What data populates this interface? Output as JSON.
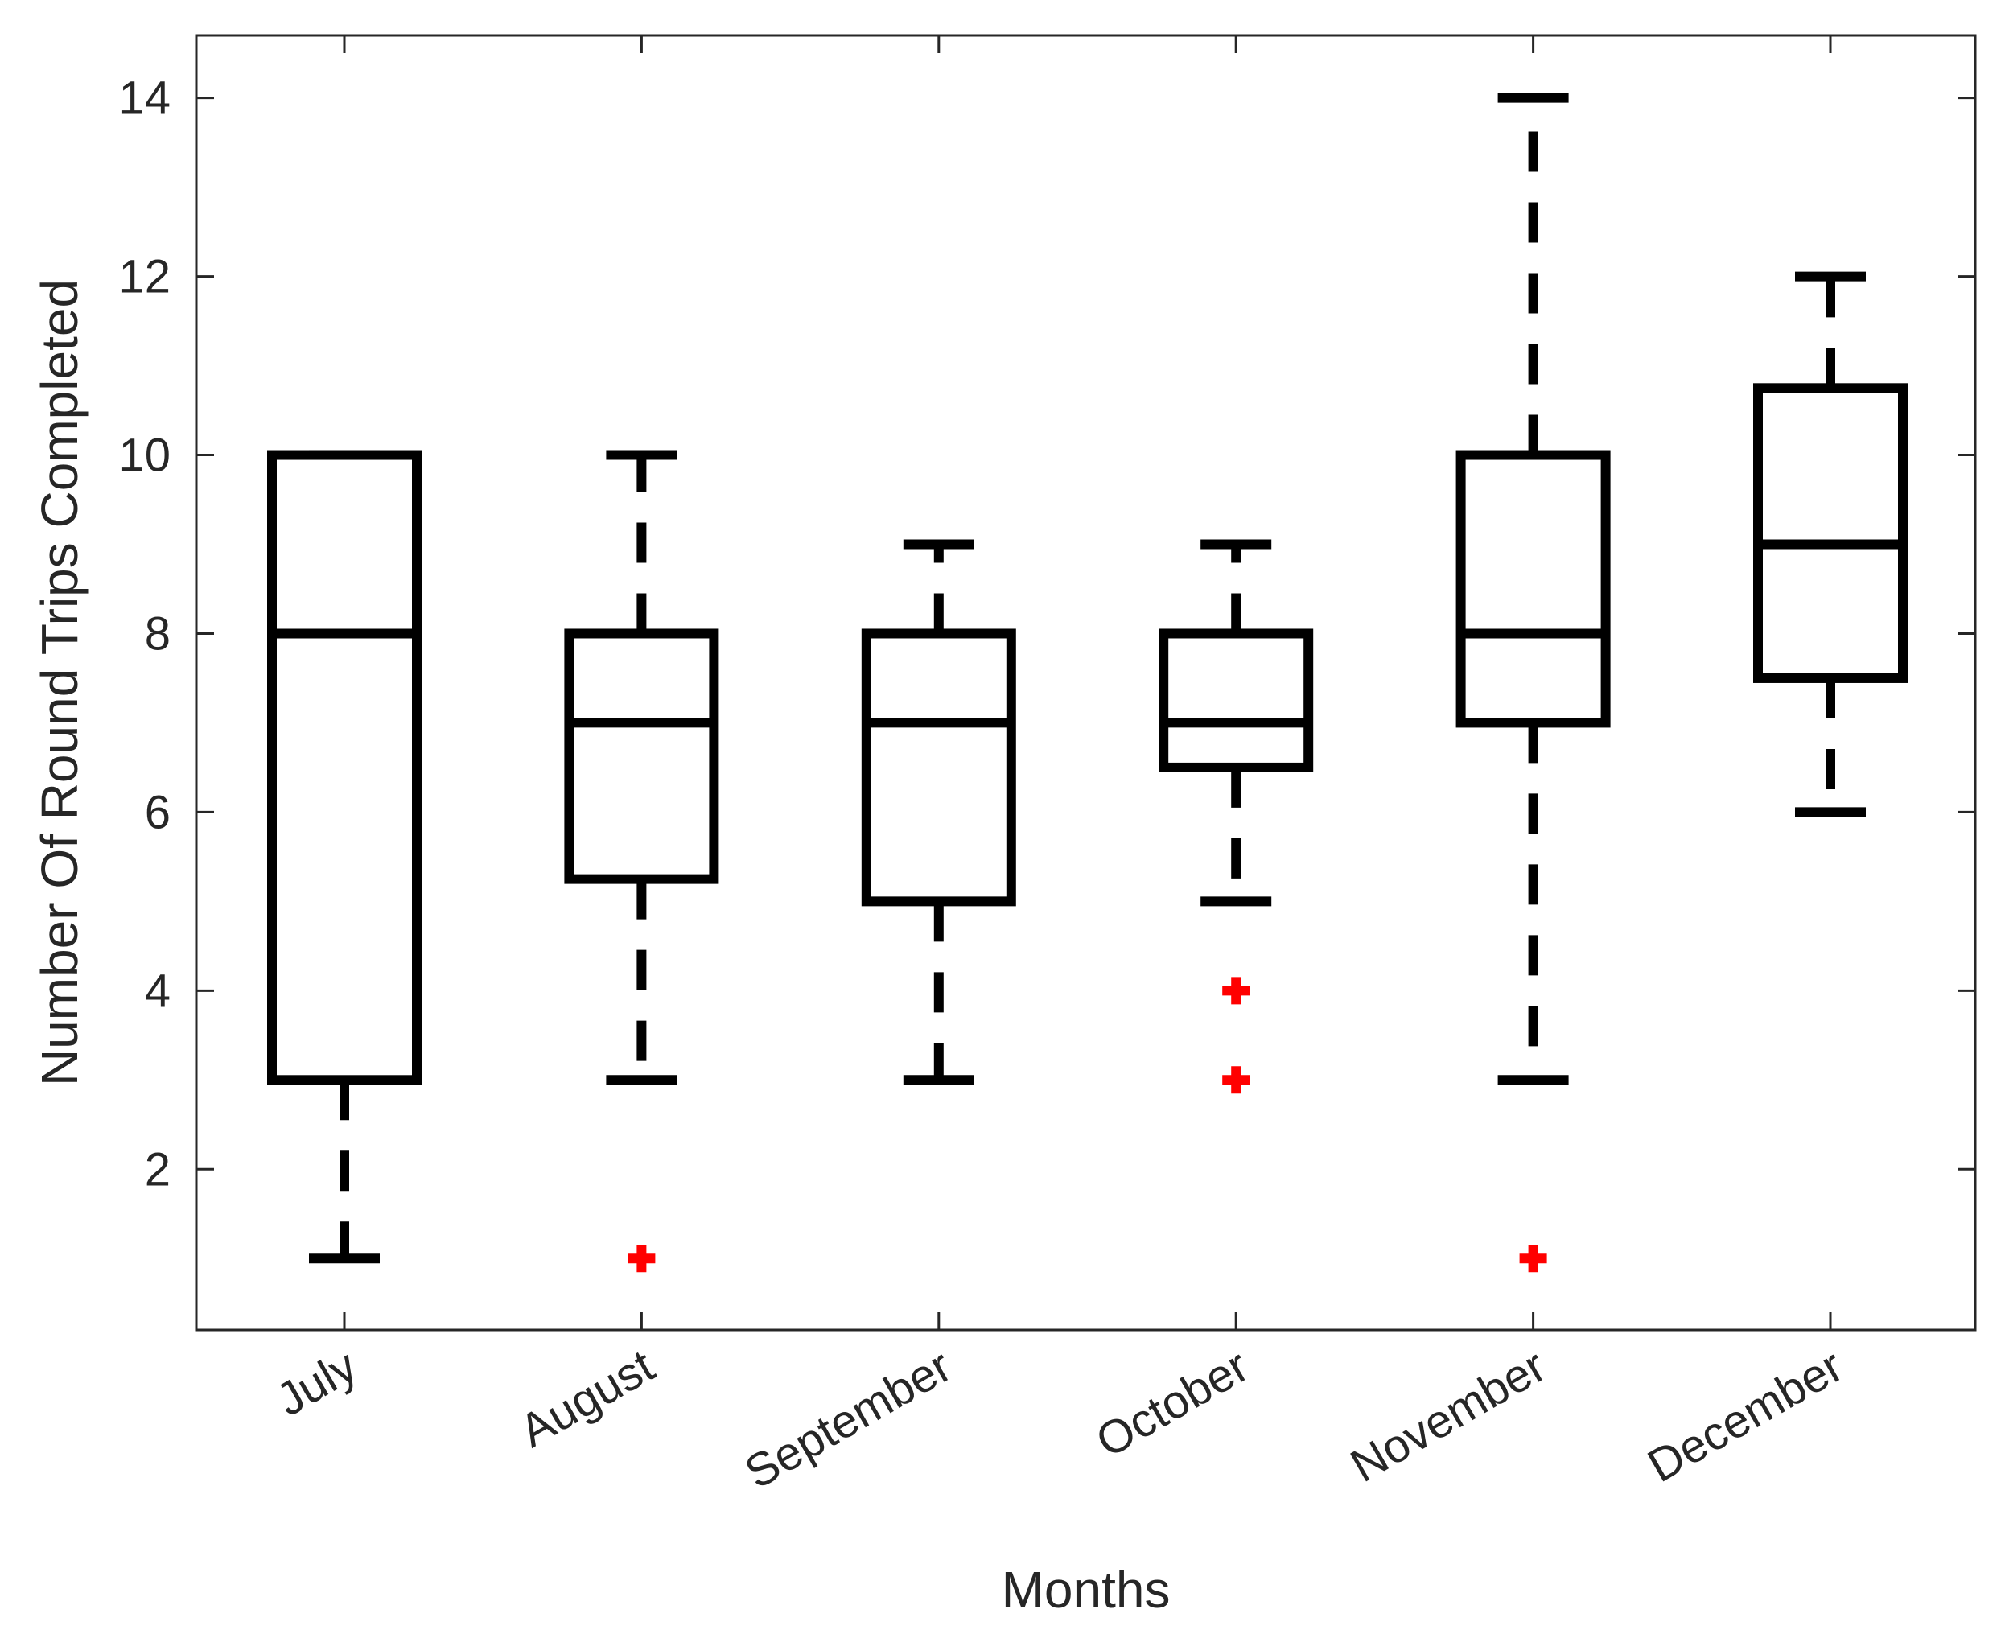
{
  "chart_data": {
    "type": "box",
    "xlabel": "Months",
    "ylabel": "Number Of Round Trips Completed",
    "ylim": [
      0.2,
      14.7
    ],
    "yticks": [
      2,
      4,
      6,
      8,
      10,
      12,
      14
    ],
    "categories": [
      "July",
      "August",
      "September",
      "October",
      "November",
      "December"
    ],
    "boxes": [
      {
        "category": "July",
        "whisker_low": 1,
        "q1": 3,
        "median": 8,
        "q3": 10,
        "whisker_high": 10,
        "outliers": []
      },
      {
        "category": "August",
        "whisker_low": 3,
        "q1": 5.25,
        "median": 7,
        "q3": 8,
        "whisker_high": 10,
        "outliers": [
          1
        ]
      },
      {
        "category": "September",
        "whisker_low": 3,
        "q1": 5,
        "median": 7,
        "q3": 8,
        "whisker_high": 9,
        "outliers": []
      },
      {
        "category": "October",
        "whisker_low": 5,
        "q1": 6.5,
        "median": 7,
        "q3": 8,
        "whisker_high": 9,
        "outliers": [
          4,
          3
        ]
      },
      {
        "category": "November",
        "whisker_low": 3,
        "q1": 7,
        "median": 8,
        "q3": 10,
        "whisker_high": 14,
        "outliers": [
          1
        ]
      },
      {
        "category": "December",
        "whisker_low": 6,
        "q1": 7.5,
        "median": 9,
        "q3": 10.75,
        "whisker_high": 12,
        "outliers": []
      }
    ],
    "colors": {
      "box": "#000000",
      "outlier": "#ff0000",
      "axis": "#262626"
    },
    "grid": false,
    "legend": "none"
  }
}
